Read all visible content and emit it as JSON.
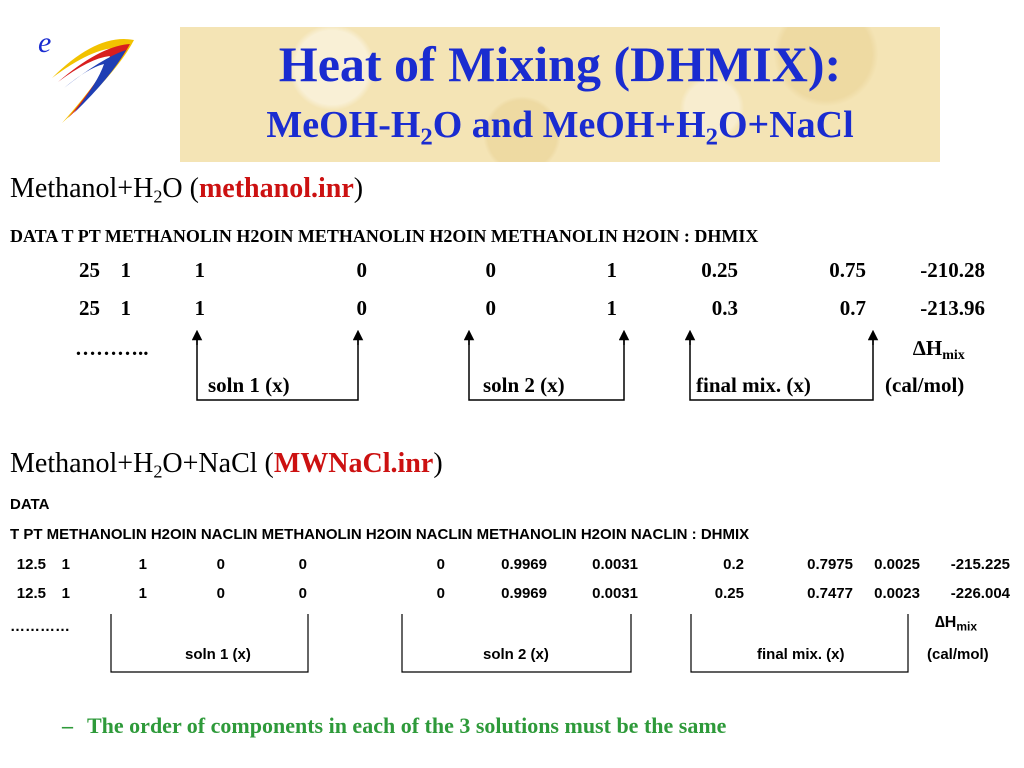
{
  "title": {
    "main": "Heat of Mixing (DHMIX):",
    "sub_pre": "MeOH-H",
    "sub_s1": "2",
    "sub_mid": "O and MeOH+H",
    "sub_s2": "2",
    "sub_post": "O+NaCl"
  },
  "logo": {
    "text": "e",
    "icon": "e-swoosh-logo"
  },
  "section1": {
    "heading_pre": "Methanol+H",
    "heading_sub": "2",
    "heading_post": "O (",
    "file": "methanol.inr",
    "heading_close": ")",
    "header_line": "DATA T  PT   METHANOLIN  H2OIN  METHANOLIN H2OIN METHANOLIN H2OIN : DHMIX",
    "rows": [
      [
        "25",
        "1",
        "1",
        "0",
        "0",
        "1",
        "0.25",
        "0.75",
        "-210.28"
      ],
      [
        "25",
        "1",
        "1",
        "0",
        "0",
        "1",
        "0.3",
        "0.7",
        "-213.96"
      ]
    ],
    "ellipsis": "………..",
    "dh_symbol": "∆H",
    "dh_sub": "mix",
    "labels": [
      "soln 1 (x)",
      "soln 2 (x)",
      "final mix. (x)",
      "(cal/mol)"
    ]
  },
  "section2": {
    "heading_pre": "Methanol+H",
    "heading_sub": "2",
    "heading_post": "O+NaCl (",
    "file": "MWNaCl.inr",
    "heading_close": ")",
    "data_label": "DATA",
    "header_line": "T PT METHANOLIN  H2OIN  NACLIN  METHANOLIN  H2OIN NACLIN METHANOLIN H2OIN NACLIN : DHMIX",
    "rows": [
      [
        "12.5",
        "1",
        "1",
        "0",
        "0",
        "0",
        "0.9969",
        "0.0031",
        "0.2",
        "0.7975",
        "0.0025",
        "-215.225"
      ],
      [
        "12.5",
        "1",
        "1",
        "0",
        "0",
        "0",
        "0.9969",
        "0.0031",
        "0.25",
        "0.7477",
        "0.0023",
        "-226.004"
      ]
    ],
    "ellipsis": "…………",
    "dh_symbol": "∆H",
    "dh_sub": "mix",
    "labels": [
      "soln 1 (x)",
      "soln 2 (x)",
      "final mix. (x)",
      "(cal/mol)"
    ]
  },
  "note": {
    "dash": "–",
    "text": "The order of components in each of the 3 solutions must be the same"
  }
}
